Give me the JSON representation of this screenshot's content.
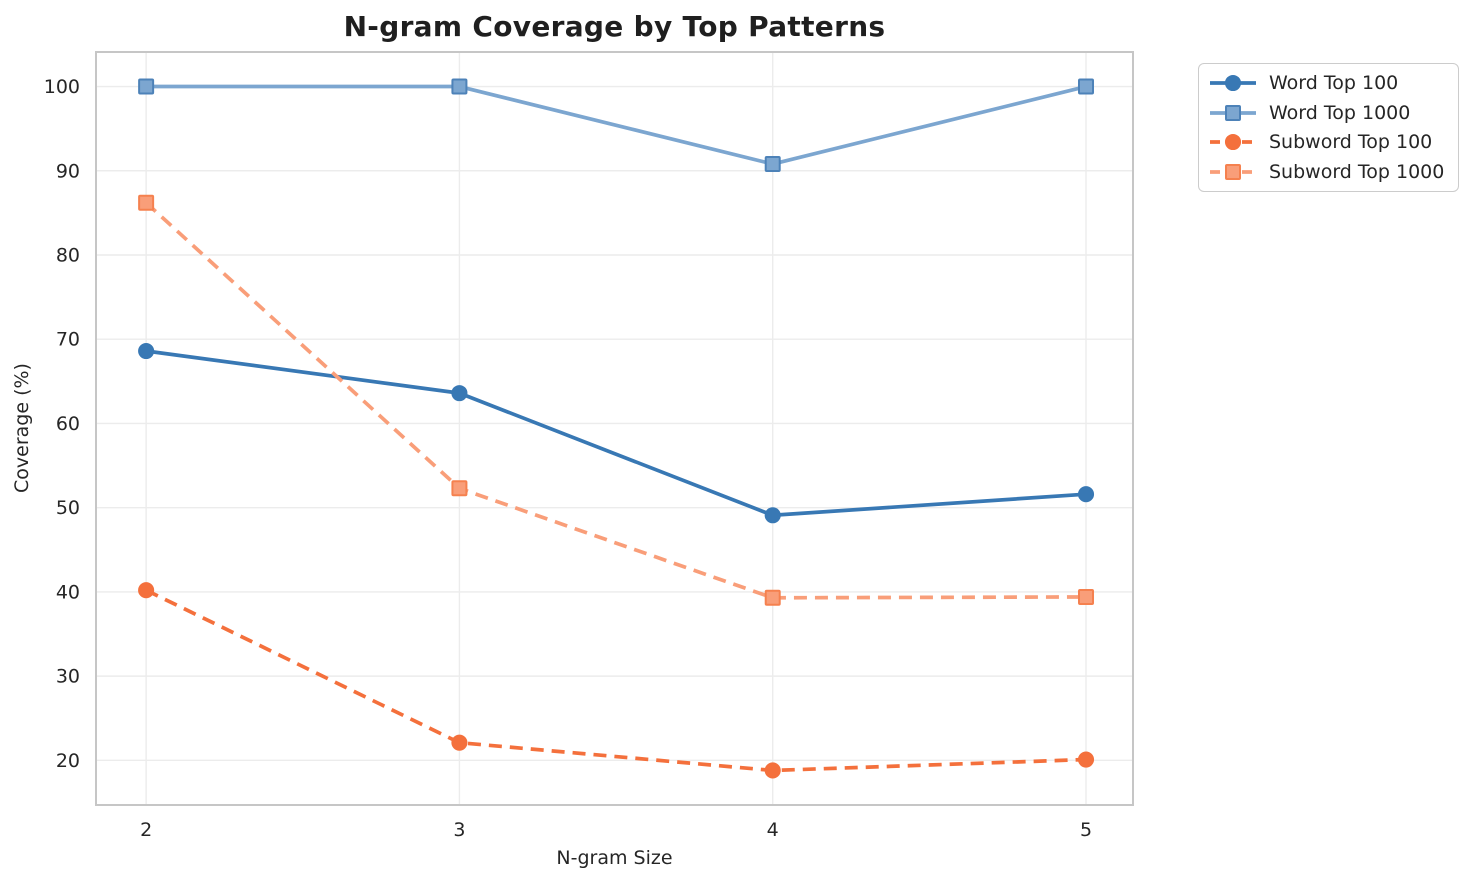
{
  "figure": {
    "background": "#ffffff",
    "grid_color": "#ececec",
    "spine_color": "#c6c6c6",
    "text_color": "#262626",
    "title_color": "#1f1f1f"
  },
  "chart_data": {
    "type": "line",
    "title": "N-gram Coverage by Top Patterns",
    "xlabel": "N-gram Size",
    "ylabel": "Coverage (%)",
    "x": [
      2,
      3,
      4,
      5
    ],
    "xticks": [
      2,
      3,
      4,
      5
    ],
    "yticks": [
      20,
      30,
      40,
      50,
      60,
      70,
      80,
      90,
      100
    ],
    "xlim": [
      1.84,
      5.15
    ],
    "ylim": [
      14.7,
      104.1
    ],
    "grid": true,
    "legend_position": "outside-upper-right",
    "series": [
      {
        "name": "Word Top 100",
        "values": [
          68.6,
          63.6,
          49.1,
          51.6
        ],
        "color": "#3878b4",
        "edge": "#3878b4",
        "dash": false,
        "marker": "circle"
      },
      {
        "name": "Word Top 1000",
        "values": [
          100,
          100,
          90.8,
          100
        ],
        "color": "#7ca6d0",
        "edge": "#4d82b8",
        "dash": false,
        "marker": "square"
      },
      {
        "name": "Subword Top 100",
        "values": [
          40.2,
          22.1,
          18.8,
          20.1
        ],
        "color": "#f4703c",
        "edge": "#f4703c",
        "dash": true,
        "marker": "circle"
      },
      {
        "name": "Subword Top 1000",
        "values": [
          86.2,
          52.3,
          39.3,
          39.4
        ],
        "color": "#f99e79",
        "edge": "#f5814f",
        "dash": true,
        "marker": "square"
      }
    ]
  }
}
